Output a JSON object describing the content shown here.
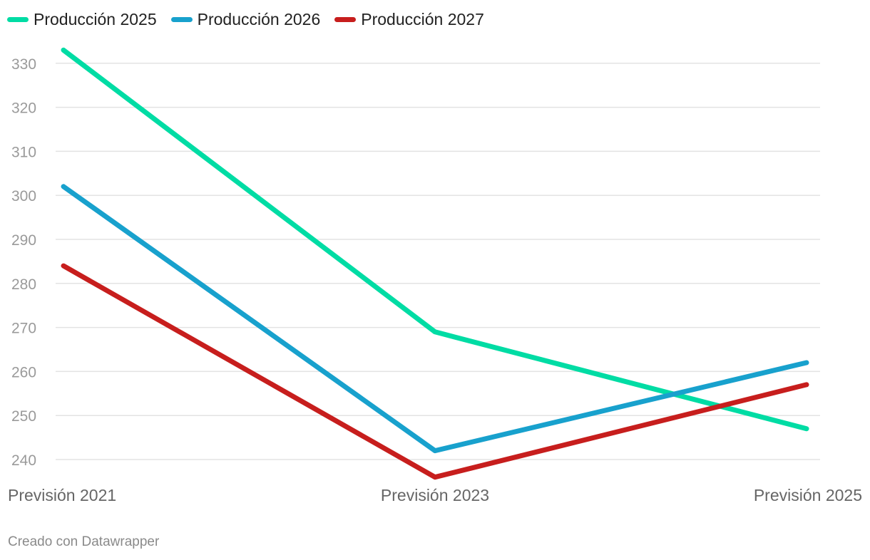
{
  "chart_data": {
    "type": "line",
    "categories": [
      "Previsión 2021",
      "Previsión 2023",
      "Previsión 2025"
    ],
    "series": [
      {
        "name": "Producción 2025",
        "values": [
          333,
          269,
          247
        ],
        "color": "#00dca4"
      },
      {
        "name": "Producción 2026",
        "values": [
          302,
          242,
          262
        ],
        "color": "#18a1cd"
      },
      {
        "name": "Producción 2027",
        "values": [
          284,
          236,
          257
        ],
        "color": "#c71e1d"
      }
    ],
    "yticks": [
      240,
      250,
      260,
      270,
      280,
      290,
      300,
      310,
      320,
      330
    ],
    "ylim": [
      236,
      333
    ],
    "grid": true,
    "legend_position": "top-left",
    "gridline_color": "#e3e3e3",
    "tick_label_color": "#9a9a9a",
    "category_label_color": "#666666"
  },
  "footer": {
    "credit": "Creado con Datawrapper"
  }
}
